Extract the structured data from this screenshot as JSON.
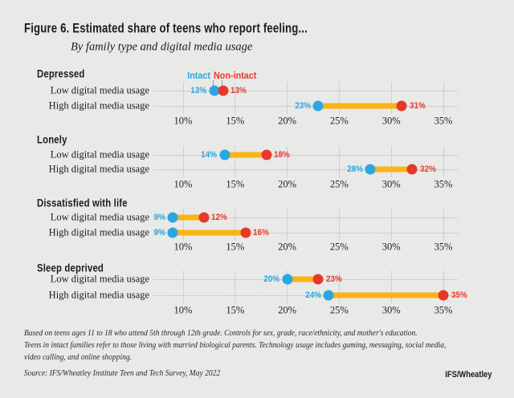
{
  "header": {
    "title": "Figure 6. Estimated share of teens who report feeling...",
    "subtitle": "By family type and digital media usage"
  },
  "legend": {
    "intact": "Intact",
    "non_intact": "Non-intact"
  },
  "colors": {
    "intact": "#2aa7e0",
    "non_intact": "#e6392b",
    "bar": "#fbb316",
    "background": "#e9e9e8",
    "grid": "#cfcfcf"
  },
  "chart_data": {
    "type": "dumbbell",
    "unit": "%",
    "x_ticks": [
      "10%",
      "15%",
      "20%",
      "25%",
      "30%",
      "35%"
    ],
    "x_range": [
      10,
      35
    ],
    "series": [
      "Intact",
      "Non-intact"
    ],
    "sections": [
      {
        "title": "Depressed",
        "rows": [
          {
            "label": "Low digital media usage",
            "intact": 13,
            "non_intact": 13
          },
          {
            "label": "High digital media usage",
            "intact": 23,
            "non_intact": 31
          }
        ]
      },
      {
        "title": "Lonely",
        "rows": [
          {
            "label": "Low digital media usage",
            "intact": 14,
            "non_intact": 18
          },
          {
            "label": "High digital media usage",
            "intact": 28,
            "non_intact": 32
          }
        ]
      },
      {
        "title": "Dissatisfied with life",
        "rows": [
          {
            "label": "Low digital media usage",
            "intact": 9,
            "non_intact": 12
          },
          {
            "label": "High digital media usage",
            "intact": 9,
            "non_intact": 16
          }
        ]
      },
      {
        "title": "Sleep deprived",
        "rows": [
          {
            "label": "Low digital media usage",
            "intact": 20,
            "non_intact": 23
          },
          {
            "label": "High digital media usage",
            "intact": 24,
            "non_intact": 35
          }
        ]
      }
    ]
  },
  "notes": {
    "line1": "Based on teens ages 11 to 18 who attend 5th through 12th grade. Controls for sex, grade, race/ethnicity, and mother's education.",
    "line2": "Teens in intact families refer to those living with married biological parents. Technology usage includes gaming, messaging, social media,",
    "line3": "video calling, and online shopping.",
    "source": "Source: IFS/Wheatley Institute Teen and Tech Survey, May 2022"
  },
  "branding": {
    "logo": "IFS/Wheatley"
  }
}
